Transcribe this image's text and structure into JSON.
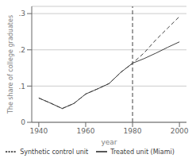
{
  "chart_data": {
    "type": "line",
    "xlabel": "year",
    "ylabel": "The share of college graduates",
    "x": [
      1940,
      1945,
      1950,
      1955,
      1960,
      1965,
      1970,
      1975,
      1980,
      1985,
      1990,
      1995,
      2000
    ],
    "series": [
      {
        "name": "Treated unit (Miami)",
        "color": "#404040",
        "line_style": "solid",
        "values": [
          0.067,
          0.053,
          0.038,
          0.052,
          0.078,
          0.092,
          0.107,
          0.138,
          0.163,
          0.176,
          0.191,
          0.207,
          0.222
        ]
      },
      {
        "name": "Synthetic control unit",
        "color": "#404040",
        "line_style": "dashed",
        "values": [
          0.067,
          0.053,
          0.038,
          0.052,
          0.078,
          0.092,
          0.107,
          0.138,
          0.163,
          0.192,
          0.228,
          0.26,
          0.292
        ]
      }
    ],
    "xlim": [
      1937,
      2003
    ],
    "xticks": [
      1940,
      1960,
      1980,
      2000
    ],
    "ylim": [
      0,
      0.32
    ],
    "yticks": [
      0,
      {
        "value": 0.1,
        "label": ".1"
      },
      {
        "value": 0.2,
        "label": ".2"
      },
      {
        "value": 0.3,
        "label": ".3"
      }
    ],
    "vline_x": 1980,
    "grid": true,
    "legend": "bottom"
  }
}
